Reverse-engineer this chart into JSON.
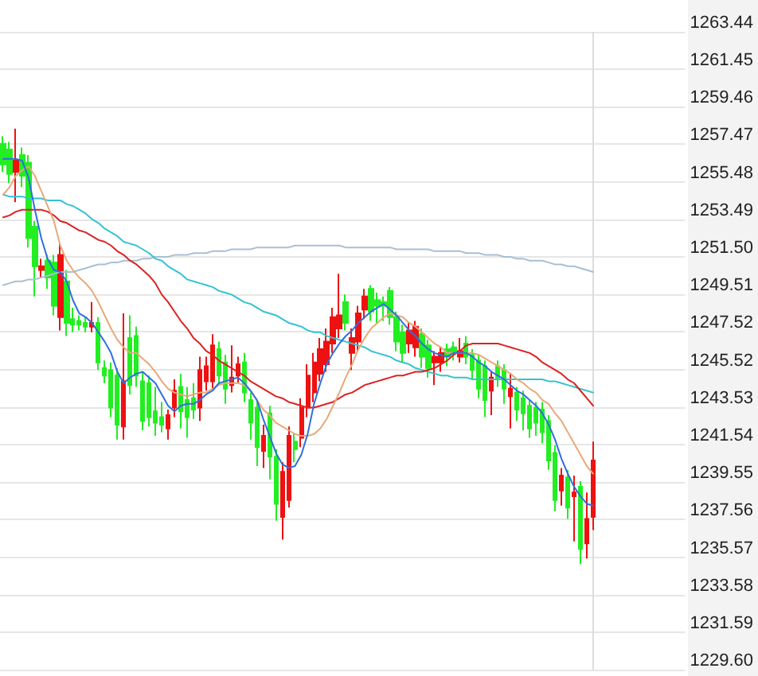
{
  "chart_data": {
    "type": "candlestick",
    "categories": [
      null,
      null,
      null,
      null,
      null,
      null,
      null,
      null,
      null,
      null,
      null,
      null,
      null,
      null,
      null,
      null,
      null,
      null,
      null,
      null,
      null,
      null,
      null,
      null,
      null,
      null,
      null,
      null,
      null,
      null,
      null,
      null,
      null,
      null,
      null,
      null,
      null,
      null,
      null,
      null,
      null,
      null,
      null,
      null,
      null,
      null,
      null,
      null,
      null,
      null,
      null,
      null,
      null,
      null,
      null,
      null,
      null,
      null,
      null,
      null,
      null,
      null,
      null,
      null,
      null,
      null,
      null,
      null,
      null,
      null,
      null,
      null,
      null,
      null,
      null,
      null,
      null,
      null,
      null,
      null,
      null,
      null,
      null,
      null,
      null,
      null,
      null,
      null,
      null,
      null,
      null,
      null,
      null,
      null
    ],
    "series": [
      {
        "ohlc": [
          [
            1257.5,
            1257.9,
            1256.0,
            1256.4
          ],
          [
            1257.2,
            1257.6,
            1255.4,
            1255.9
          ],
          [
            1256.0,
            1258.3,
            1254.4,
            1256.6
          ],
          [
            1256.9,
            1257.3,
            1255.2,
            1255.8
          ],
          [
            1256.5,
            1256.9,
            1252.0,
            1252.5
          ],
          [
            1253.1,
            1253.4,
            1249.4,
            1251.0
          ],
          [
            1250.8,
            1251.4,
            1250.4,
            1251.0
          ],
          [
            1251.3,
            1251.6,
            1249.8,
            1250.4
          ],
          [
            1251.2,
            1251.6,
            1248.4,
            1248.9
          ],
          [
            1248.3,
            1252.2,
            1247.6,
            1251.6
          ],
          [
            1250.2,
            1250.8,
            1247.3,
            1248.0
          ],
          [
            1248.2,
            1248.8,
            1247.5,
            1247.9
          ],
          [
            1248.1,
            1248.4,
            1247.6,
            1247.9
          ],
          [
            1248.0,
            1248.3,
            1247.5,
            1247.8
          ],
          [
            1247.8,
            1249.1,
            1247.5,
            1248.0
          ],
          [
            1248.0,
            1248.3,
            1245.5,
            1245.9
          ],
          [
            1245.6,
            1246.0,
            1244.8,
            1245.2
          ],
          [
            1245.5,
            1245.9,
            1243.0,
            1243.5
          ],
          [
            1245.2,
            1245.6,
            1241.8,
            1242.6
          ],
          [
            1242.5,
            1248.5,
            1241.8,
            1244.9
          ],
          [
            1247.2,
            1248.4,
            1244.2,
            1244.7
          ],
          [
            1247.3,
            1247.8,
            1244.6,
            1245.2
          ],
          [
            1244.9,
            1245.4,
            1242.3,
            1242.8
          ],
          [
            1244.8,
            1245.2,
            1242.5,
            1243.0
          ],
          [
            1243.3,
            1244.6,
            1242.0,
            1242.7
          ],
          [
            1243.0,
            1243.8,
            1242.2,
            1242.6
          ],
          [
            1242.4,
            1243.4,
            1241.8,
            1243.1
          ],
          [
            1243.5,
            1245.0,
            1243.0,
            1244.4
          ],
          [
            1244.6,
            1245.3,
            1242.4,
            1243.3
          ],
          [
            1243.9,
            1244.6,
            1241.9,
            1243.0
          ],
          [
            1244.0,
            1244.8,
            1242.9,
            1243.4
          ],
          [
            1243.5,
            1246.2,
            1242.8,
            1245.5
          ],
          [
            1244.9,
            1246.2,
            1244.4,
            1245.7
          ],
          [
            1244.9,
            1247.4,
            1244.5,
            1246.8
          ],
          [
            1246.6,
            1247.0,
            1244.7,
            1245.2
          ],
          [
            1245.9,
            1246.3,
            1243.7,
            1244.5
          ],
          [
            1244.7,
            1246.8,
            1244.3,
            1245.1
          ],
          [
            1245.2,
            1246.2,
            1244.8,
            1245.8
          ],
          [
            1245.9,
            1246.4,
            1243.8,
            1244.3
          ],
          [
            1243.9,
            1244.3,
            1241.8,
            1242.7
          ],
          [
            1243.5,
            1243.9,
            1240.4,
            1241.4
          ],
          [
            1241.2,
            1242.6,
            1240.3,
            1242.0
          ],
          [
            1243.2,
            1243.6,
            1239.7,
            1240.9
          ],
          [
            1240.9,
            1241.3,
            1237.5,
            1238.4
          ],
          [
            1237.7,
            1240.6,
            1236.5,
            1240.1
          ],
          [
            1238.6,
            1242.5,
            1238.2,
            1242.0
          ],
          [
            1241.7,
            1242.1,
            1240.6,
            1241.3
          ],
          [
            1241.9,
            1244.0,
            1241.4,
            1243.5
          ],
          [
            1243.5,
            1245.8,
            1243.0,
            1245.2
          ],
          [
            1244.3,
            1246.4,
            1243.8,
            1245.9
          ],
          [
            1245.3,
            1247.2,
            1244.9,
            1246.6
          ],
          [
            1245.8,
            1247.7,
            1245.4,
            1247.0
          ],
          [
            1246.9,
            1248.8,
            1246.4,
            1248.3
          ],
          [
            1247.7,
            1250.6,
            1247.2,
            1248.4
          ],
          [
            1249.1,
            1249.5,
            1247.6,
            1248.0
          ],
          [
            1246.4,
            1247.7,
            1245.5,
            1247.2
          ],
          [
            1247.0,
            1248.9,
            1246.5,
            1248.5
          ],
          [
            1248.7,
            1249.8,
            1248.2,
            1249.4
          ],
          [
            1249.8,
            1250.0,
            1248.1,
            1248.6
          ],
          [
            1249.2,
            1249.6,
            1248.0,
            1248.9
          ],
          [
            1249.1,
            1249.4,
            1248.1,
            1248.9
          ],
          [
            1249.7,
            1249.9,
            1247.9,
            1248.3
          ],
          [
            1248.3,
            1248.6,
            1246.5,
            1247.0
          ],
          [
            1247.5,
            1247.9,
            1245.9,
            1246.4
          ],
          [
            1246.9,
            1248.0,
            1246.4,
            1247.6
          ],
          [
            1246.7,
            1248.1,
            1246.2,
            1247.8
          ],
          [
            1247.4,
            1247.7,
            1245.6,
            1246.2
          ],
          [
            1246.8,
            1247.1,
            1245.1,
            1245.6
          ],
          [
            1245.9,
            1246.5,
            1244.7,
            1246.2
          ],
          [
            1245.9,
            1246.7,
            1245.4,
            1246.4
          ],
          [
            1246.6,
            1246.9,
            1245.7,
            1246.2
          ],
          [
            1246.7,
            1247.0,
            1246.0,
            1246.4
          ],
          [
            1246.2,
            1247.2,
            1245.9,
            1246.5
          ],
          [
            1246.9,
            1247.3,
            1245.8,
            1246.2
          ],
          [
            1246.3,
            1246.6,
            1245.0,
            1245.5
          ],
          [
            1246.0,
            1246.3,
            1244.0,
            1244.5
          ],
          [
            1245.7,
            1246.0,
            1243.0,
            1243.9
          ],
          [
            1244.4,
            1245.4,
            1243.1,
            1245.1
          ],
          [
            1245.7,
            1246.0,
            1244.6,
            1245.1
          ],
          [
            1245.5,
            1245.8,
            1243.7,
            1244.5
          ],
          [
            1244.1,
            1245.3,
            1242.4,
            1244.5
          ],
          [
            1244.3,
            1244.6,
            1242.8,
            1243.4
          ],
          [
            1244.0,
            1244.4,
            1242.3,
            1243.2
          ],
          [
            1243.6,
            1243.9,
            1241.9,
            1242.4
          ],
          [
            1243.5,
            1243.8,
            1242.0,
            1242.7
          ],
          [
            1243.4,
            1243.8,
            1241.6,
            1242.2
          ],
          [
            1242.8,
            1243.1,
            1240.2,
            1240.7
          ],
          [
            1241.1,
            1241.5,
            1238.0,
            1238.6
          ],
          [
            1239.1,
            1240.3,
            1238.3,
            1239.9
          ],
          [
            1239.8,
            1240.2,
            1237.6,
            1238.2
          ],
          [
            1238.8,
            1239.9,
            1236.4,
            1239.0
          ],
          [
            1239.3,
            1239.6,
            1235.2,
            1236.0
          ],
          [
            1236.3,
            1239.0,
            1235.5,
            1237.6
          ],
          [
            1237.7,
            1241.7,
            1237.0,
            1240.7
          ]
        ],
        "colors": [
          "#22ee22",
          "#22ee22",
          "#ee1111",
          "#22ee22",
          "#22ee22",
          "#22ee22",
          "#ee1111",
          "#22ee22",
          "#22ee22",
          "#ee1111",
          "#22ee22",
          "#22ee22",
          "#22ee22",
          "#22ee22",
          "#ee1111",
          "#22ee22",
          "#22ee22",
          "#22ee22",
          "#22ee22",
          "#ee1111",
          "#22ee22",
          "#22ee22",
          "#22ee22",
          "#22ee22",
          "#22ee22",
          "#22ee22",
          "#ee1111",
          "#ee1111",
          "#22ee22",
          "#22ee22",
          "#22ee22",
          "#ee1111",
          "#ee1111",
          "#ee1111",
          "#22ee22",
          "#22ee22",
          "#ee1111",
          "#ee1111",
          "#22ee22",
          "#22ee22",
          "#22ee22",
          "#ee1111",
          "#22ee22",
          "#22ee22",
          "#ee1111",
          "#ee1111",
          "#22ee22",
          "#ee1111",
          "#ee1111",
          "#ee1111",
          "#ee1111",
          "#ee1111",
          "#ee1111",
          "#ee1111",
          "#22ee22",
          "#ee1111",
          "#ee1111",
          "#ee1111",
          "#22ee22",
          "#22ee22",
          "#22ee22",
          "#22ee22",
          "#22ee22",
          "#22ee22",
          "#ee1111",
          "#ee1111",
          "#22ee22",
          "#22ee22",
          "#ee1111",
          "#ee1111",
          "#22ee22",
          "#22ee22",
          "#ee1111",
          "#22ee22",
          "#22ee22",
          "#22ee22",
          "#22ee22",
          "#ee1111",
          "#22ee22",
          "#22ee22",
          "#ee1111",
          "#22ee22",
          "#22ee22",
          "#22ee22",
          "#22ee22",
          "#22ee22",
          "#22ee22",
          "#22ee22",
          "#ee1111",
          "#22ee22",
          "#ee1111",
          "#22ee22",
          "#ee1111",
          "#ee1111"
        ]
      },
      {
        "type": "line",
        "color": "#a9bfd3",
        "values": [
          1250.0,
          1250.1,
          1250.2,
          1250.2,
          1250.3,
          1250.3,
          1250.4,
          1250.5,
          1250.6,
          1250.7,
          1250.7,
          1250.7,
          1250.8,
          1250.9,
          1251.0,
          1251.1,
          1251.1,
          1251.2,
          1251.2,
          1251.3,
          1251.3,
          1251.3,
          1251.4,
          1251.4,
          1251.5,
          1251.5,
          1251.5,
          1251.6,
          1251.6,
          1251.6,
          1251.7,
          1251.7,
          1251.7,
          1251.8,
          1251.8,
          1251.8,
          1251.9,
          1251.9,
          1251.9,
          1251.9,
          1252.0,
          1252.0,
          1252.0,
          1252.0,
          1252.0,
          1252.0,
          1252.1,
          1252.1,
          1252.1,
          1252.1,
          1252.1,
          1252.1,
          1252.1,
          1252.1,
          1252.0,
          1252.0,
          1252.0,
          1252.0,
          1252.0,
          1252.0,
          1252.0,
          1252.0,
          1251.9,
          1251.9,
          1251.9,
          1251.9,
          1251.9,
          1251.9,
          1251.8,
          1251.8,
          1251.8,
          1251.8,
          1251.8,
          1251.7,
          1251.7,
          1251.7,
          1251.6,
          1251.6,
          1251.6,
          1251.5,
          1251.5,
          1251.4,
          1251.4,
          1251.3,
          1251.3,
          1251.3,
          1251.2,
          1251.1,
          1251.1,
          1251.0,
          1251.0,
          1250.9,
          1250.8,
          1250.7
        ]
      },
      {
        "type": "line",
        "color": "#33c3d3",
        "values": [
          1254.8,
          1254.7,
          1254.7,
          1254.7,
          1254.6,
          1254.6,
          1254.6,
          1254.5,
          1254.5,
          1254.5,
          1254.3,
          1254.2,
          1254.0,
          1253.8,
          1253.5,
          1253.3,
          1253.0,
          1252.8,
          1252.6,
          1252.3,
          1252.2,
          1252.1,
          1251.9,
          1251.7,
          1251.4,
          1251.3,
          1251.0,
          1250.8,
          1250.6,
          1250.3,
          1250.2,
          1250.1,
          1250.0,
          1249.9,
          1249.7,
          1249.6,
          1249.5,
          1249.3,
          1249.1,
          1249.0,
          1248.8,
          1248.6,
          1248.5,
          1248.4,
          1248.2,
          1248.0,
          1247.9,
          1247.8,
          1247.6,
          1247.5,
          1247.5,
          1247.3,
          1247.2,
          1247.1,
          1247.0,
          1246.9,
          1246.8,
          1246.7,
          1246.5,
          1246.4,
          1246.3,
          1246.2,
          1246.0,
          1245.9,
          1245.8,
          1245.6,
          1245.5,
          1245.4,
          1245.3,
          1245.2,
          1245.2,
          1245.1,
          1245.1,
          1245.1,
          1245.0,
          1245.0,
          1245.0,
          1245.0,
          1245.0,
          1245.0,
          1245.0,
          1245.0,
          1245.0,
          1245.0,
          1245.0,
          1245.0,
          1244.9,
          1244.9,
          1244.8,
          1244.7,
          1244.6,
          1244.5,
          1244.4,
          1244.3
        ]
      },
      {
        "type": "line",
        "color": "#dd2222",
        "values": [
          1253.6,
          1253.7,
          1253.9,
          1254.0,
          1254.0,
          1254.0,
          1254.0,
          1253.9,
          1253.7,
          1253.4,
          1253.3,
          1253.1,
          1252.9,
          1252.8,
          1252.6,
          1252.4,
          1252.3,
          1252.1,
          1251.8,
          1251.6,
          1251.3,
          1251.1,
          1250.8,
          1250.5,
          1250.1,
          1249.5,
          1249.1,
          1248.6,
          1248.1,
          1247.7,
          1247.2,
          1246.9,
          1246.5,
          1246.3,
          1246.0,
          1245.8,
          1245.6,
          1245.4,
          1245.2,
          1244.9,
          1244.7,
          1244.5,
          1244.3,
          1244.1,
          1244.0,
          1243.8,
          1243.7,
          1243.6,
          1243.5,
          1243.5,
          1243.6,
          1243.7,
          1243.8,
          1244.0,
          1244.2,
          1244.3,
          1244.5,
          1244.7,
          1244.8,
          1244.9,
          1245.0,
          1245.1,
          1245.2,
          1245.2,
          1245.3,
          1245.4,
          1245.4,
          1245.5,
          1245.6,
          1245.8,
          1246.0,
          1246.3,
          1246.5,
          1246.8,
          1246.9,
          1246.9,
          1246.9,
          1246.9,
          1246.9,
          1246.8,
          1246.7,
          1246.6,
          1246.5,
          1246.4,
          1246.2,
          1245.9,
          1245.7,
          1245.5,
          1245.3,
          1245.0,
          1244.8,
          1244.4,
          1244.0,
          1243.6
        ]
      },
      {
        "type": "line",
        "color": "#e8a878",
        "values": [
          1254.8,
          1255.2,
          1255.8,
          1256.1,
          1256.3,
          1255.8,
          1255.0,
          1254.2,
          1253.4,
          1252.1,
          1251.3,
          1250.8,
          1250.4,
          1250.1,
          1249.7,
          1249.1,
          1248.4,
          1247.7,
          1247.1,
          1246.7,
          1246.4,
          1246.4,
          1246.1,
          1245.8,
          1245.4,
          1244.9,
          1244.5,
          1244.3,
          1244.2,
          1244.1,
          1244.2,
          1244.3,
          1244.3,
          1244.5,
          1244.7,
          1244.8,
          1244.8,
          1244.8,
          1244.7,
          1244.4,
          1243.9,
          1243.4,
          1243.1,
          1242.7,
          1242.5,
          1242.3,
          1242.1,
          1242.0,
          1242.0,
          1242.1,
          1242.4,
          1242.9,
          1243.6,
          1244.3,
          1245.1,
          1245.8,
          1246.6,
          1247.2,
          1247.7,
          1248.0,
          1248.3,
          1248.5,
          1248.4,
          1248.3,
          1248.0,
          1247.8,
          1247.5,
          1247.2,
          1246.9,
          1246.7,
          1246.4,
          1246.4,
          1246.4,
          1246.4,
          1246.4,
          1246.3,
          1246.1,
          1245.9,
          1245.7,
          1245.5,
          1245.3,
          1245.0,
          1244.8,
          1244.5,
          1244.3,
          1243.9,
          1243.7,
          1243.2,
          1242.8,
          1242.2,
          1241.6,
          1241.0,
          1240.4,
          1240.0
        ]
      },
      {
        "type": "line",
        "color": "#2f6fdf",
        "values": [
          1256.7,
          1256.7,
          1256.7,
          1256.6,
          1255.7,
          1254.0,
          1252.5,
          1251.4,
          1250.8,
          1250.7,
          1250.2,
          1249.2,
          1248.5,
          1248.3,
          1248.0,
          1247.5,
          1247.0,
          1246.4,
          1245.4,
          1244.8,
          1245.1,
          1245.3,
          1245.4,
          1245.1,
          1244.8,
          1244.2,
          1243.6,
          1243.3,
          1243.6,
          1243.7,
          1243.7,
          1243.9,
          1244.2,
          1244.4,
          1244.8,
          1244.9,
          1245.0,
          1245.1,
          1244.8,
          1244.4,
          1243.9,
          1242.9,
          1242.0,
          1241.1,
          1240.5,
          1240.3,
          1240.4,
          1241.0,
          1242.1,
          1243.7,
          1244.8,
          1245.8,
          1246.4,
          1246.9,
          1247.3,
          1247.6,
          1248.0,
          1248.3,
          1248.6,
          1248.8,
          1249.0,
          1248.7,
          1248.4,
          1248.0,
          1247.6,
          1247.3,
          1246.9,
          1246.6,
          1246.4,
          1246.3,
          1246.2,
          1246.4,
          1246.4,
          1246.4,
          1246.2,
          1245.9,
          1245.7,
          1245.4,
          1245.2,
          1245.0,
          1244.7,
          1244.4,
          1244.2,
          1243.9,
          1243.6,
          1243.2,
          1242.6,
          1241.8,
          1240.8,
          1240.0,
          1239.3,
          1238.8,
          1238.4,
          1238.3
        ]
      }
    ],
    "ylim": [
      1229.6,
      1263.44
    ],
    "yticks": [
      {
        "value": 1229.6,
        "label": "1229.60"
      },
      1231.59,
      1233.58,
      1235.57,
      1237.56,
      1239.55,
      1241.54,
      1243.53,
      1245.52,
      1247.52,
      1249.51,
      {
        "value": 1251.5,
        "label": "1251.50"
      },
      1253.49,
      1255.48,
      1257.47,
      1259.46,
      1261.45,
      1263.44
    ],
    "grid": "y",
    "tick_labels": "y",
    "marker": "none",
    "line_style": "solid"
  }
}
